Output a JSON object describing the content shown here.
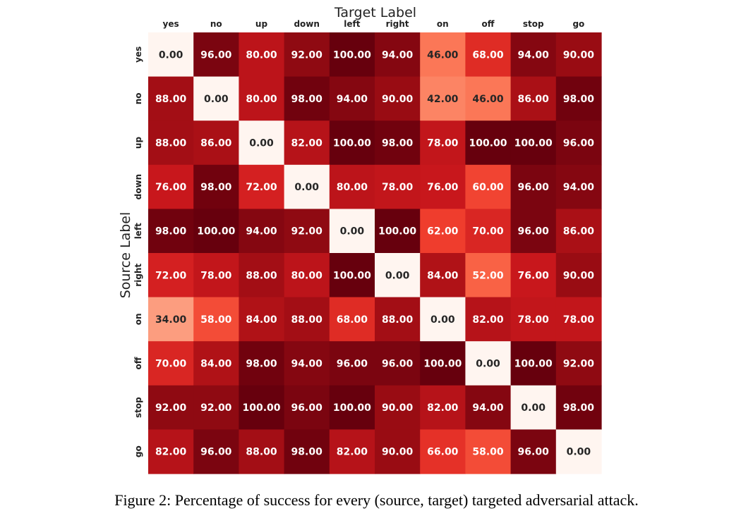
{
  "caption": "Figure 2: Percentage of success for every (source, target) targeted adversarial attack.",
  "chart_data": {
    "type": "heatmap",
    "title": "Target Label",
    "xlabel": "Target Label",
    "ylabel": "Source Label",
    "x_categories": [
      "yes",
      "no",
      "up",
      "down",
      "left",
      "right",
      "on",
      "off",
      "stop",
      "go"
    ],
    "y_categories": [
      "yes",
      "no",
      "up",
      "down",
      "left",
      "right",
      "on",
      "off",
      "stop",
      "go"
    ],
    "x_axis_position": "top",
    "value_range": [
      0,
      100
    ],
    "colormap": "Reds",
    "values": [
      [
        0.0,
        96.0,
        80.0,
        92.0,
        100.0,
        94.0,
        46.0,
        68.0,
        94.0,
        90.0
      ],
      [
        88.0,
        0.0,
        80.0,
        98.0,
        94.0,
        90.0,
        42.0,
        46.0,
        86.0,
        98.0
      ],
      [
        88.0,
        86.0,
        0.0,
        82.0,
        100.0,
        98.0,
        78.0,
        100.0,
        100.0,
        96.0
      ],
      [
        76.0,
        98.0,
        72.0,
        0.0,
        80.0,
        78.0,
        76.0,
        60.0,
        96.0,
        94.0
      ],
      [
        98.0,
        100.0,
        94.0,
        92.0,
        0.0,
        100.0,
        62.0,
        70.0,
        96.0,
        86.0
      ],
      [
        72.0,
        78.0,
        88.0,
        80.0,
        100.0,
        0.0,
        84.0,
        52.0,
        76.0,
        90.0
      ],
      [
        34.0,
        58.0,
        84.0,
        88.0,
        68.0,
        88.0,
        0.0,
        82.0,
        78.0,
        78.0
      ],
      [
        70.0,
        84.0,
        98.0,
        94.0,
        96.0,
        96.0,
        100.0,
        0.0,
        100.0,
        92.0
      ],
      [
        92.0,
        92.0,
        100.0,
        96.0,
        100.0,
        90.0,
        82.0,
        94.0,
        0.0,
        98.0
      ],
      [
        82.0,
        96.0,
        88.0,
        98.0,
        82.0,
        90.0,
        66.0,
        58.0,
        96.0,
        0.0
      ]
    ],
    "grid": false,
    "legend": "none"
  }
}
